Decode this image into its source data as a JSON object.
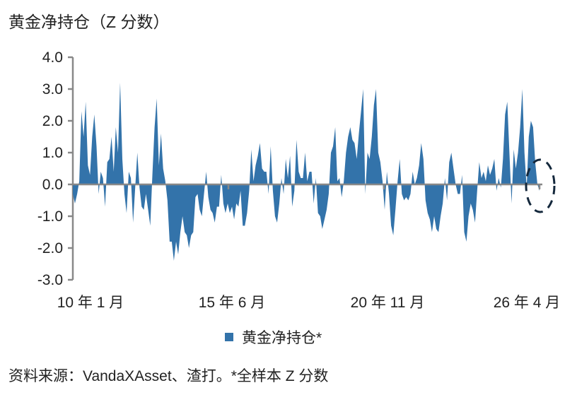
{
  "title": "黄金净持仓（Z 分数）",
  "source": "资料来源：VandaXAsset、渣打。*全样本 Z 分数",
  "chart_data": {
    "type": "area",
    "ylim": [
      -3.0,
      4.0
    ],
    "yticks": [
      "4.0",
      "3.0",
      "2.0",
      "1.0",
      "0.0",
      "-1.0",
      "-2.0",
      "-3.0"
    ],
    "ytick_values": [
      4,
      3,
      2,
      1,
      0,
      -1,
      -2,
      -3
    ],
    "x_range": [
      "2010-01",
      "2026-04"
    ],
    "xticks": [
      {
        "label": "10 年 1 月",
        "date": "2010-01"
      },
      {
        "label": "15 年 6 月",
        "date": "2015-06"
      },
      {
        "label": "20 年 11 月",
        "date": "2020-11"
      },
      {
        "label": "26 年 4 月",
        "date": "2026-04"
      }
    ],
    "color": "#3373aa",
    "annotation": "dashed-ellipse-around-latest",
    "series": [
      {
        "name": "黄金净持仓*",
        "values": [
          -0.3,
          -0.6,
          -0.3,
          0.1,
          2.3,
          1.5,
          2.6,
          0.6,
          0.3,
          1.5,
          2.2,
          1.2,
          -0.3,
          0.4,
          0.2,
          -0.7,
          0.7,
          0.8,
          1.5,
          0.4,
          1.8,
          1.0,
          3.2,
          0.8,
          -0.3,
          -0.9,
          0.4,
          0.2,
          -1.2,
          -0.1,
          1.0,
          -0.1,
          -0.7,
          -0.8,
          -0.3,
          -0.8,
          -1.3,
          0.3,
          1.8,
          2.7,
          0.6,
          1.6,
          0.5,
          0.1,
          -0.5,
          -1.8,
          -1.8,
          -2.4,
          -1.8,
          -2.2,
          -1.5,
          -1.0,
          -1.5,
          -1.6,
          -2.0,
          -1.6,
          -1.5,
          -0.4,
          -0.3,
          -0.8,
          -1.0,
          -0.3,
          0.4,
          -0.4,
          -0.8,
          -0.9,
          -1.2,
          -0.7,
          -0.7,
          0.3,
          -0.6,
          -0.9,
          -0.6,
          -0.9,
          -0.7,
          -1.1,
          -0.6,
          -0.7,
          -0.2,
          -1.3,
          -1.3,
          -0.9,
          -0.2,
          1.1,
          0.1,
          0.6,
          0.9,
          1.3,
          0.5,
          0.4,
          0.4,
          -0.3,
          1.2,
          -0.2,
          -1.0,
          -1.2,
          -0.6,
          0.2,
          -0.3,
          0.8,
          0.2,
          0.9,
          -0.7,
          -0.2,
          1.4,
          0.4,
          0.2,
          0.2,
          1.0,
          0.1,
          0.4,
          0.4,
          -0.6,
          0.2,
          -0.9,
          -1.0,
          -1.4,
          -1.1,
          -0.8,
          -0.3,
          1.0,
          1.2,
          1.8,
          0.1,
          0.2,
          -0.4,
          0.1,
          1.0,
          1.5,
          1.8,
          1.4,
          1.3,
          0.8,
          1.6,
          2.3,
          3.0,
          -0.3,
          1.0,
          0.8,
          1.5,
          2.5,
          3.0,
          1.0,
          0.7,
          0.1,
          -0.8,
          0.4,
          -0.3,
          -1.3,
          -1.6,
          -0.8,
          0.1,
          0.8,
          -0.3,
          -0.5,
          -0.4,
          -0.5,
          -0.3,
          0.4,
          0.0,
          0.2,
          0.6,
          1.3,
          0.8,
          -0.5,
          -0.9,
          -1.1,
          -1.5,
          -1.0,
          -1.4,
          -1.5,
          -1.0,
          -0.6,
          0.2,
          -0.5,
          0.7,
          1.0,
          0.5,
          0.0,
          -0.3,
          -0.3,
          0.3,
          -1.5,
          -1.8,
          -1.0,
          -0.6,
          -0.8,
          -1.2,
          -0.2,
          0.7,
          0.2,
          0.4,
          0.1,
          0.6,
          0.3,
          0.5,
          0.8,
          -0.2,
          0.2,
          -0.1,
          0.8,
          2.2,
          2.6,
          1.0,
          -0.6,
          1.1,
          0.5,
          1.0,
          1.8,
          3.0,
          1.0,
          -0.1,
          1.5,
          2.0,
          1.8,
          0.7,
          0.0,
          -0.2
        ]
      }
    ],
    "legend": {
      "position": "bottom",
      "label": "黄金净持仓*"
    },
    "grid": false
  }
}
